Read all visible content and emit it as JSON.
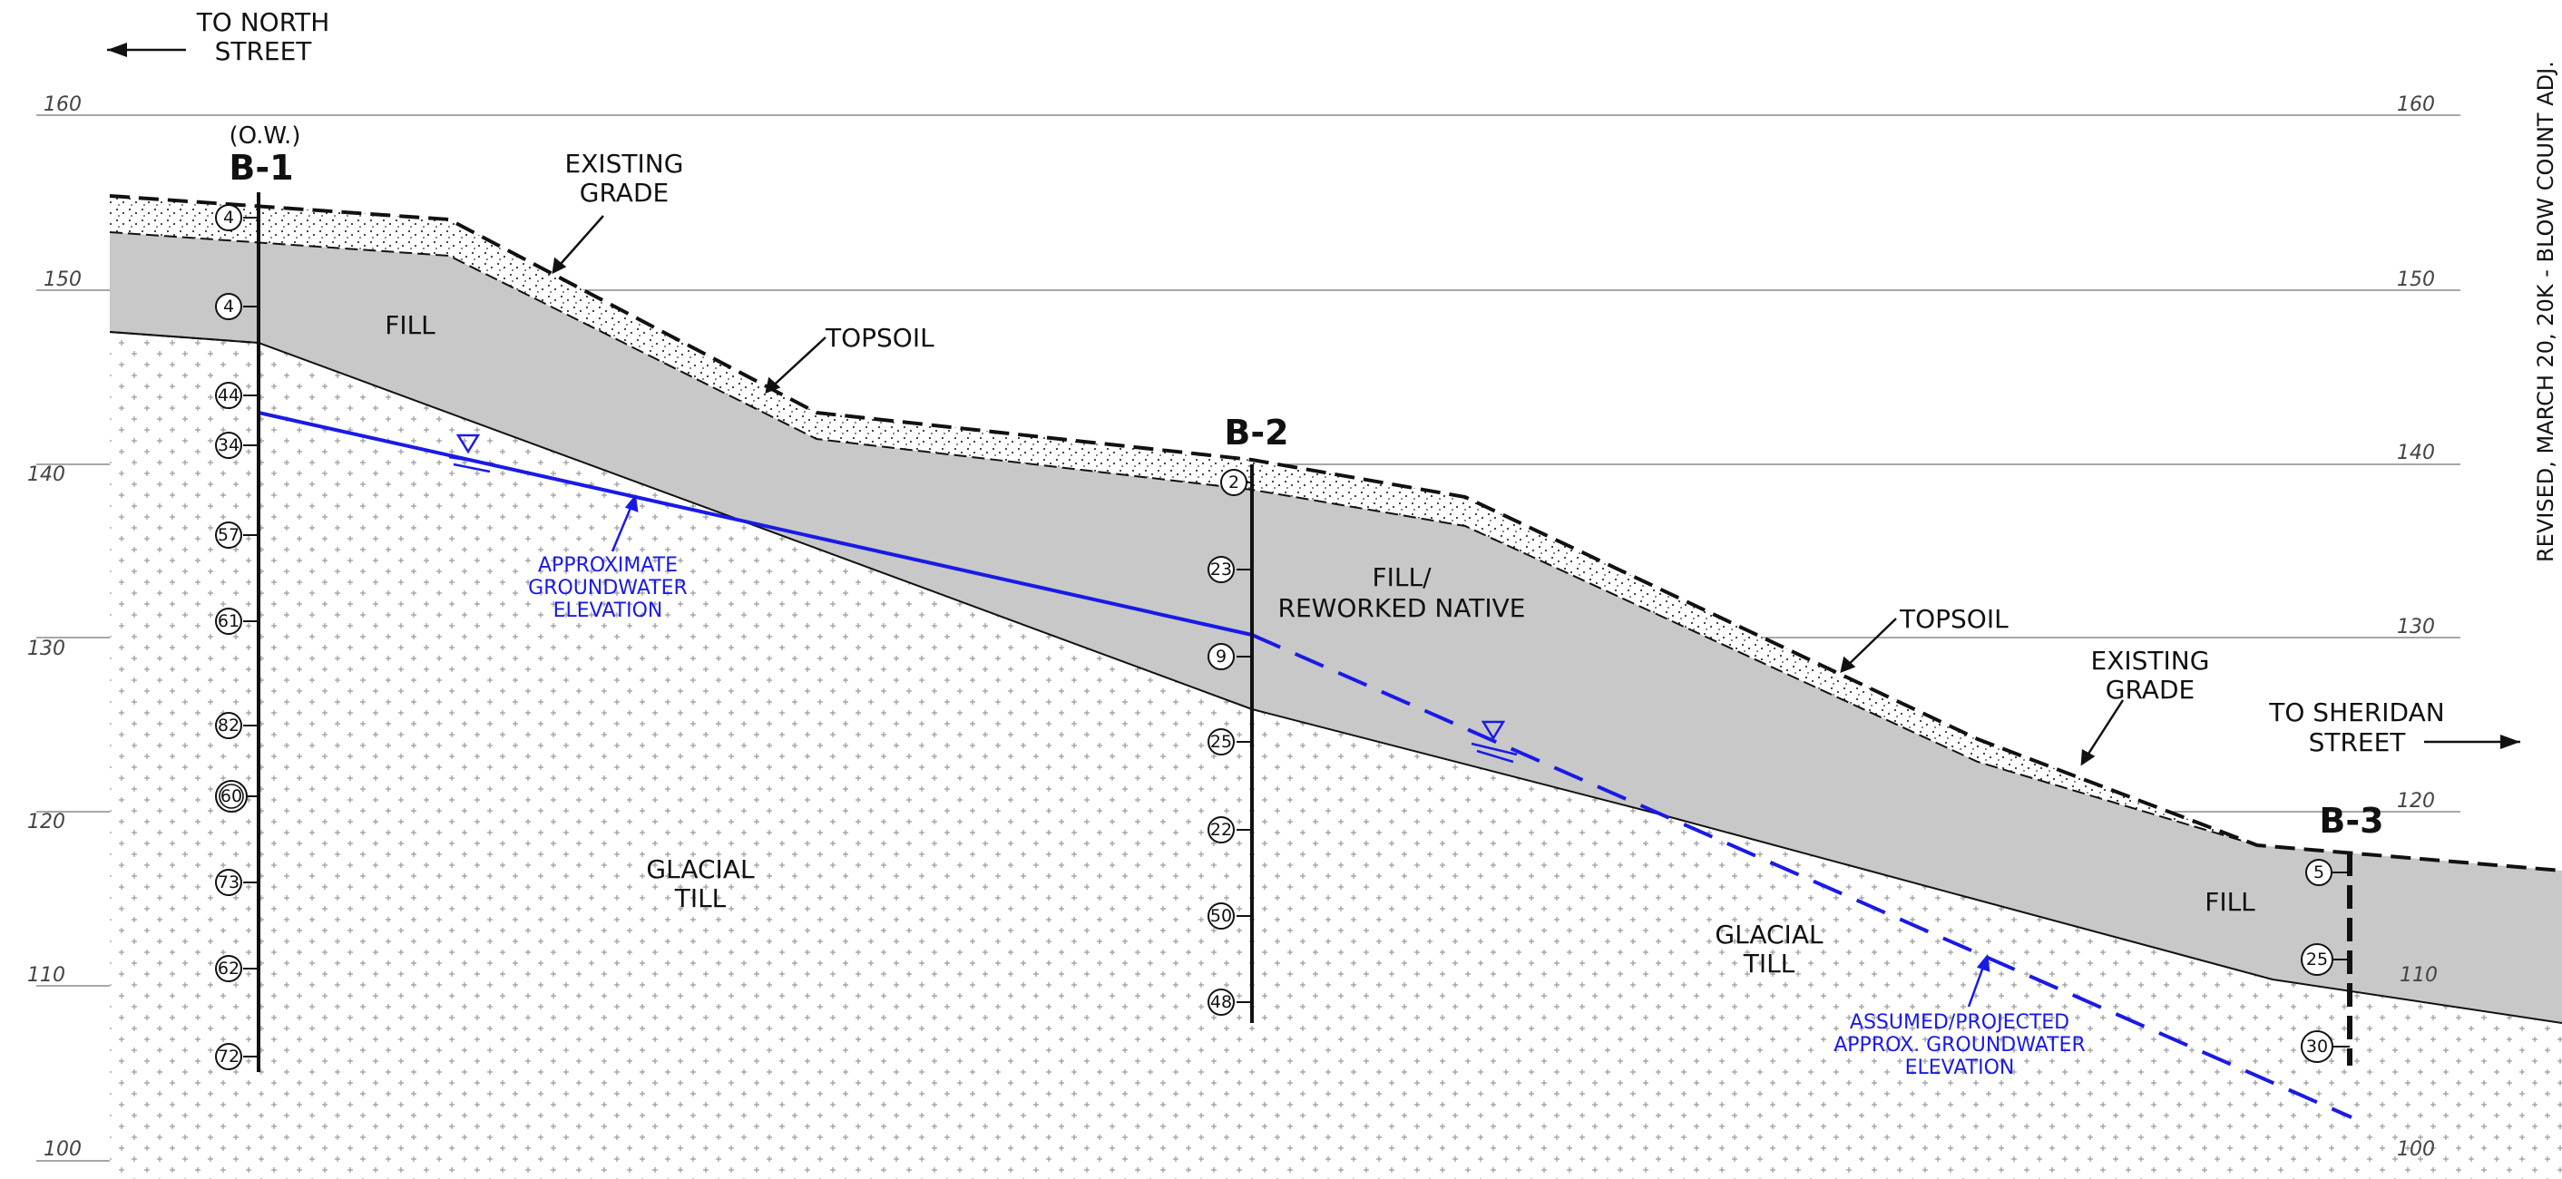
{
  "directions": {
    "left_line1": "TO NORTH",
    "left_line2": "STREET",
    "right_line1": "TO SHERIDAN",
    "right_line2": "STREET"
  },
  "elevations_left": [
    "160",
    "150",
    "140",
    "130",
    "120",
    "110",
    "100"
  ],
  "elevations_right": [
    "160",
    "150",
    "140",
    "130",
    "120",
    "110",
    "100"
  ],
  "borings": [
    {
      "id": "B-1",
      "note": "(O.W.)",
      "blow_counts": [
        "4",
        "4",
        "44",
        "34",
        "57",
        "61",
        "82",
        "60",
        "73",
        "62",
        "72"
      ]
    },
    {
      "id": "B-2",
      "note": "",
      "blow_counts": [
        "2",
        "23",
        "9",
        "25",
        "22",
        "50",
        "48"
      ]
    },
    {
      "id": "B-3",
      "note": "",
      "blow_counts": [
        "5",
        "25",
        "30"
      ]
    }
  ],
  "labels": {
    "existing_grade_1": [
      "EXISTING",
      "GRADE"
    ],
    "existing_grade_2": [
      "EXISTING",
      "GRADE"
    ],
    "topsoil_1": "TOPSOIL",
    "topsoil_2": "TOPSOIL",
    "fill_1": "FILL",
    "fill_2": [
      "FILL/",
      "REWORKED NATIVE"
    ],
    "fill_3": "FILL",
    "glacial_till_1": [
      "GLACIAL",
      "TILL"
    ],
    "glacial_till_2": [
      "GLACIAL",
      "TILL"
    ],
    "approx_gw": [
      "APPROXIMATE",
      "GROUNDWATER",
      "ELEVATION"
    ],
    "assumed_gw": [
      "ASSUMED/PROJECTED",
      "APPROX. GROUNDWATER",
      "ELEVATION"
    ]
  },
  "margin_note": "REVISED, MARCH 20, 20K - BLOW COUNT ADJ.",
  "colors": {
    "fill_gray": "#c8c8c8",
    "groundwater_blue": "#1a1ae6",
    "line_black": "#111111"
  }
}
